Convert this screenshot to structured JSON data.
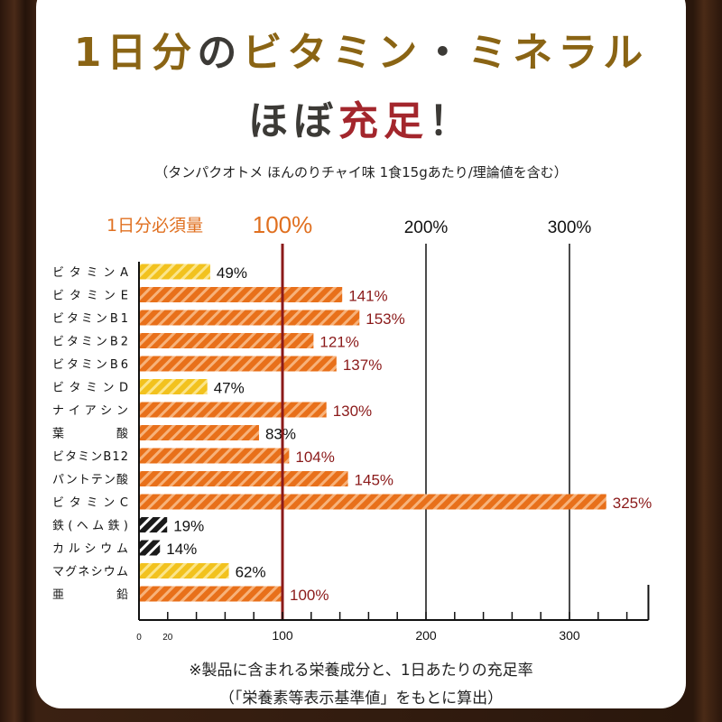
{
  "title": {
    "line1": [
      {
        "t": "1日分",
        "c": "gold"
      },
      {
        "t": "の",
        "c": "gray"
      },
      {
        "t": "ビタミン",
        "c": "gold"
      },
      {
        "t": "・",
        "c": "gray"
      },
      {
        "t": "ミネラル",
        "c": "gold"
      }
    ],
    "line2": [
      {
        "t": "ほぼ",
        "c": "gray"
      },
      {
        "t": "充足",
        "c": "red"
      },
      {
        "t": "！",
        "c": "gray"
      }
    ]
  },
  "subtitle": "（タンパクオトメ ほんのりチャイ味 1食15gあたり/理論値を含む）",
  "header_labels": {
    "required": "1日分必須量",
    "p100": "100%",
    "p200": "200%",
    "p300": "300%"
  },
  "notes": [
    "※製品に含まれる栄養成分と、1日あたりの充足率",
    "（「栄養素等表示基準値」をもとに算出）"
  ],
  "colors": {
    "gold": "#8a6414",
    "gray": "#3c3a36",
    "red": "#a3262c",
    "orange": "#e8701a",
    "yellow": "#f2c21e",
    "black": "#1a1a1a",
    "ref_line": "#8b1a1a",
    "over_label": "#8b1a1a"
  },
  "chart_data": {
    "type": "bar",
    "orientation": "horizontal",
    "categories": [
      "ビタミンA",
      "ビタミンE",
      "ビタミンB1",
      "ビタミンB2",
      "ビタミンB6",
      "ビタミンD",
      "ナイアシン",
      "葉　酸",
      "ビタミンB12",
      "パントテン酸",
      "ビタミンC",
      "鉄(ヘム鉄)",
      "カルシウム",
      "マグネシウム",
      "亜　鉛"
    ],
    "values": [
      49,
      141,
      153,
      121,
      137,
      47,
      130,
      83,
      104,
      145,
      325,
      19,
      14,
      62,
      100
    ],
    "value_labels": [
      "49%",
      "141%",
      "153%",
      "121%",
      "137%",
      "47%",
      "130%",
      "83%",
      "104%",
      "145%",
      "325%",
      "19%",
      "14%",
      "62%",
      "100%"
    ],
    "bar_colors": [
      "yellow",
      "orange",
      "orange",
      "orange",
      "orange",
      "yellow",
      "orange",
      "orange",
      "orange",
      "orange",
      "orange",
      "black",
      "black",
      "yellow",
      "orange"
    ],
    "bar_style": "diagonal-stripes",
    "xlim": [
      0,
      355
    ],
    "x_ticks": [
      "0",
      "20",
      "100",
      "200",
      "300"
    ],
    "minor_tick_step": 20,
    "reference_line": 100,
    "gridlines": [
      200,
      300
    ]
  }
}
